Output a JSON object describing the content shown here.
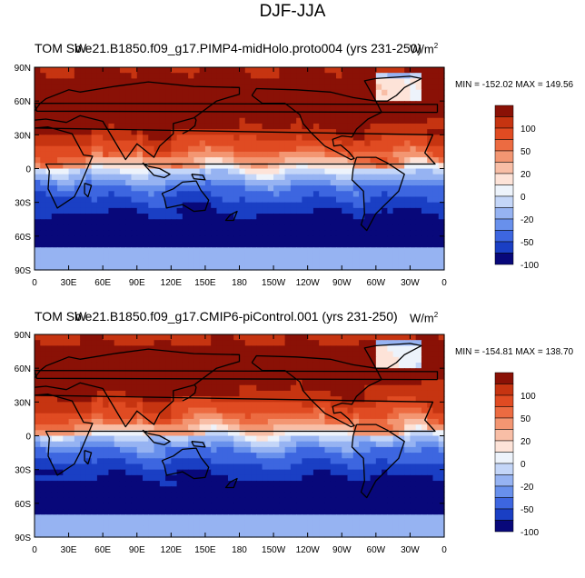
{
  "title": "DJF-JJA",
  "chart_data": [
    {
      "type": "heatmap",
      "title_left": "TOM SW",
      "title_overlap": "b.e21.B1850.f09_g17.PIMP4-midHolo.proto004 (yrs 231-250)",
      "units_base": "W/m",
      "units_exp": "2",
      "min_label": "MIN = -152.02 MAX = 149.56",
      "min": -152.02,
      "max": 149.56,
      "x_ticks": [
        "0",
        "30E",
        "60E",
        "90E",
        "120E",
        "150E",
        "180",
        "150W",
        "120W",
        "90W",
        "60W",
        "30W",
        "0"
      ],
      "y_ticks": [
        "90N",
        "60N",
        "30N",
        "0",
        "30S",
        "60S",
        "90S"
      ],
      "colorbar_labels": [
        "100",
        "50",
        "20",
        "0",
        "-20",
        "-50",
        "-100"
      ],
      "xlim": [
        0,
        360
      ],
      "ylim": [
        -90,
        90
      ]
    },
    {
      "type": "heatmap",
      "title_left": "TOM SW",
      "title_overlap": "b.e21.B1850.f09_g17.CMIP6-piControl.001 (yrs 231-250)",
      "units_base": "W/m",
      "units_exp": "2",
      "min_label": "MIN = -154.81 MAX = 138.70",
      "min": -154.81,
      "max": 138.7,
      "x_ticks": [
        "0",
        "30E",
        "60E",
        "90E",
        "120E",
        "150E",
        "180",
        "150W",
        "120W",
        "90W",
        "60W",
        "30W",
        "0"
      ],
      "y_ticks": [
        "90N",
        "60N",
        "30N",
        "0",
        "30S",
        "60S",
        "90S"
      ],
      "colorbar_labels": [
        "100",
        "50",
        "20",
        "0",
        "-20",
        "-50",
        "-100"
      ],
      "xlim": [
        0,
        360
      ],
      "ylim": [
        -90,
        90
      ]
    }
  ],
  "colors": {
    "palette": [
      "#08087a",
      "#1a3fc4",
      "#3d66e0",
      "#6890ec",
      "#96b3f2",
      "#c4d6f8",
      "#edf3fb",
      "#fde3d8",
      "#f8bea6",
      "#f39672",
      "#ec6b41",
      "#e04b22",
      "#c63411",
      "#8a1106"
    ]
  }
}
